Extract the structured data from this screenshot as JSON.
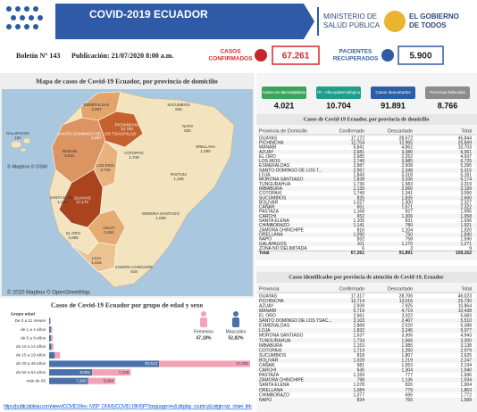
{
  "header": {
    "title": "COVID-2019 ECUADOR",
    "ministry": [
      "MINISTERIO DE",
      "SALUD PÚBLICA"
    ],
    "government": [
      "EL GOBIERNO",
      "DE TODOS"
    ]
  },
  "bulletin": {
    "number": "Boletín N° 143",
    "published": "Publicación: 21/07/2020 8:00 a.m.",
    "confirmed_label": [
      "CASOS",
      "CONFIRMADOS"
    ],
    "confirmed": "67.261",
    "recovered_label": [
      "PACIENTES",
      "RECUPERADOS"
    ],
    "recovered": "5.900"
  },
  "map": {
    "title": "Mapa de casos de Covid-19 Ecuador, por provincia de domicilio",
    "attribution": "© Mapbox © OSM",
    "footer": "© 2020 Mapbox © OpenStreetMap",
    "labels": [
      {
        "name": "GALAPAGOS",
        "value": "101"
      },
      {
        "name": "ESMERALDAS",
        "value": "2,887"
      },
      {
        "name": "SUCUMBIOS",
        "value": "825"
      },
      {
        "name": "PICHINCHA",
        "value": "12,704"
      },
      {
        "name": "SANTO DOMINGO DE LOS TSACHILAS",
        "value": "2,967"
      },
      {
        "name": "NAPO",
        "value": "832"
      },
      {
        "name": "ORELLANA",
        "value": "1,090"
      },
      {
        "name": "MANABI",
        "value": "5,841"
      },
      {
        "name": "COTOPAXI",
        "value": "1,749"
      },
      {
        "name": "LOS RIOS",
        "value": "2,740"
      },
      {
        "name": "PASTAZA",
        "value": "1,168"
      },
      {
        "name": "SANTA ELENA",
        "value": "1,105"
      },
      {
        "name": "GUAYAS",
        "value": "17,172"
      },
      {
        "name": "MORONA SANTIAGO",
        "value": "1,838"
      },
      {
        "name": "AZUAY",
        "value": "2,681"
      },
      {
        "name": "EL ORO",
        "value": "2,685"
      },
      {
        "name": "LOJA",
        "value": "1,843"
      },
      {
        "name": "ZAMORA CHINCHIPE",
        "value": "816"
      }
    ]
  },
  "kpis": [
    {
      "label": "Casos con alta hospitalaria",
      "value": "4.021"
    },
    {
      "label": "ITI - Alta epidemiológica",
      "value": "10.704"
    },
    {
      "label": "Casos descartados",
      "value": "91.891"
    },
    {
      "label": "Personas fallecidas",
      "value": "8.766"
    }
  ],
  "table_domicilio": {
    "title": "Casos de Covid-19 Ecuador, por provincia de domicilio",
    "columns": [
      "Provincia de Domicilio",
      "Confirmado",
      "Descartado",
      "Total"
    ],
    "rows": [
      [
        "GUAYAS",
        "17,172",
        "28,672",
        "45,844"
      ],
      [
        "PICHINCHA",
        "12,704",
        "12,965",
        "25,669"
      ],
      [
        "MANABI",
        "5,841",
        "4,862",
        "10,703"
      ],
      [
        "AZUAY",
        "2,681",
        "3,380",
        "6,061"
      ],
      [
        "EL ORO",
        "2,685",
        "2,252",
        "4,937"
      ],
      [
        "LOS RIOS",
        "2,740",
        "3,985",
        "6,725"
      ],
      [
        "ESMERALDAS",
        "2,887",
        "2,508",
        "5,395"
      ],
      [
        "SANTO DOMINGO DE LOS T...",
        "2,967",
        "2,348",
        "5,315"
      ],
      [
        "LOJA",
        "1,843",
        "3,318",
        "5,161"
      ],
      [
        "MORONA SANTIAGO",
        "1,838",
        "3,336",
        "5,174"
      ],
      [
        "TUNGURAHUA",
        "1,736",
        "1,583",
        "3,319"
      ],
      [
        "IMBABURA",
        "1,139",
        "2,060",
        "3,199"
      ],
      [
        "COTOPAXI",
        "1,749",
        "1,341",
        "3,090"
      ],
      [
        "SUCUMBIOS",
        "825",
        "1,835",
        "2,660"
      ],
      [
        "BOLIVAR",
        "1,027",
        "1,300",
        "2,327"
      ],
      [
        "CAÑAR",
        "651",
        "1,671",
        "2,322"
      ],
      [
        "PASTAZA",
        "1,168",
        "827",
        "1,995"
      ],
      [
        "CARCHI",
        "652",
        "1,306",
        "1,958"
      ],
      [
        "SANTA ELENA",
        "1,105",
        "831",
        "1,936"
      ],
      [
        "CHIMBORAZO",
        "1,141",
        "780",
        "1,921"
      ],
      [
        "ZAMORA CHINCHIPE",
        "816",
        "1,104",
        "1,920"
      ],
      [
        "ORELLANA",
        "1,090",
        "750",
        "1,840"
      ],
      [
        "NAPO",
        "832",
        "758",
        "1,590"
      ],
      [
        "GALAPAGOS",
        "101",
        "1,170",
        "1,271"
      ],
      [
        "ZONA NO DELIMITADA",
        "6",
        "3",
        "9"
      ]
    ],
    "total": [
      "Total",
      "67,261",
      "91,891",
      "159,152"
    ]
  },
  "table_atencion": {
    "title": "Casos identificados por provincia de atención de Covid-19, Ecuador",
    "columns": [
      "Provincia",
      "Confirmado",
      "Descartado",
      "Total"
    ],
    "rows": [
      [
        "GUAYAS",
        "17,317",
        "28,706",
        "46,023"
      ],
      [
        "PICHINCHA",
        "12,714",
        "13,016",
        "25,730"
      ],
      [
        "AZUAY",
        "2,939",
        "7,925",
        "10,864"
      ],
      [
        "MANABI",
        "5,719",
        "4,719",
        "10,438"
      ],
      [
        "EL ORO",
        "2,661",
        "3,022",
        "5,683"
      ],
      [
        "SANTO DOMINGO DE LOS TSAC...",
        "3,103",
        "2,407",
        "5,510"
      ],
      [
        "ESMERALDAS",
        "2,868",
        "2,520",
        "5,388"
      ],
      [
        "LOJA",
        "1,832",
        "3,245",
        "5,077"
      ],
      [
        "MORONA SANTIAGO",
        "1,637",
        "3,306",
        "4,943"
      ],
      [
        "TUNGURAHUA",
        "1,734",
        "1,566",
        "3,300"
      ],
      [
        "IMBABURA",
        "1,153",
        "1,985",
        "3,138"
      ],
      [
        "COTOPAXI",
        "1,719",
        "1,260",
        "2,979"
      ],
      [
        "SUCUMBIOS",
        "818",
        "1,807",
        "2,625"
      ],
      [
        "BOLIVAR",
        "1,028",
        "1,219",
        "2,247"
      ],
      [
        "CAÑAR",
        "581",
        "1,553",
        "2,134"
      ],
      [
        "CARCHI",
        "636",
        "1,304",
        "1,940"
      ],
      [
        "PASTAZA",
        "1,159",
        "777",
        "1,936"
      ],
      [
        "ZAMORA CHINCHIPE",
        "798",
        "1,136",
        "1,934"
      ],
      [
        "SANTA ELENA",
        "1,078",
        "826",
        "1,904"
      ],
      [
        "ORELLANA",
        "1,084",
        "779",
        "1,863"
      ],
      [
        "CHIMBORAZO",
        "1,077",
        "695",
        "1,772"
      ],
      [
        "NAPO",
        "834",
        "755",
        "1,589"
      ]
    ]
  },
  "chart_data": {
    "type": "bar",
    "orientation": "horizontal",
    "stacked": true,
    "title": "Casos de  Covid-19 Ecuador por grupo de edad y sexo",
    "axis_label": [
      "Grupo edad"
    ],
    "categories": [
      "De 0 a 11 meses",
      "de 1 a 4 años",
      "de 5 a 9 años",
      "de 10 a 14 años",
      "de 15 a 19 años",
      "de 20 a 49 años",
      "de 50 a 64 años",
      "más de 65"
    ],
    "series": [
      {
        "name": "Masculino",
        "share": "52,82%",
        "color": "#4a72a8",
        "values": [
          180,
          320,
          350,
          420,
          1050,
          20513,
          8001,
          7260
        ],
        "value_labels": [
          null,
          null,
          null,
          null,
          null,
          "20,513",
          "8,001",
          "7,260"
        ]
      },
      {
        "name": "Femenino",
        "share": "47,18%",
        "color": "#f3a3b7",
        "values": [
          150,
          280,
          320,
          390,
          980,
          17003,
          7226,
          5094
        ],
        "value_labels": [
          null,
          null,
          null,
          null,
          null,
          "17,003",
          "7,226",
          "5,094"
        ]
      }
    ]
  },
  "link": "https://public.tableau.com/views/COVID19eu_MSP_DNVE/COVID-19MSP?:language=es&:display_count=y&:origin=viz_share_link"
}
